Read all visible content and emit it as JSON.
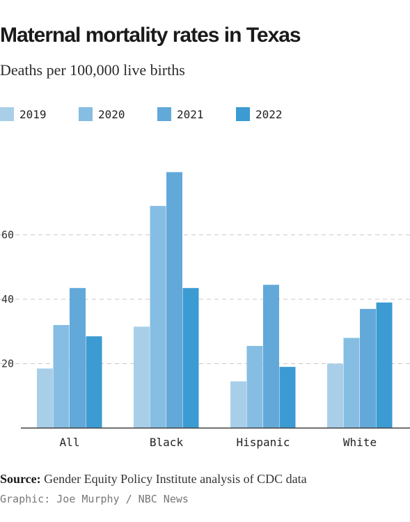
{
  "header": {
    "title": "Maternal mortality rates in Texas",
    "subtitle": "Deaths per 100,000 live births"
  },
  "footer": {
    "source_label": "Source:",
    "source_text": "Gender Equity Policy Institute analysis of CDC data",
    "credit": "Graphic: Joe Murphy / NBC News"
  },
  "colors": {
    "2019": "#a9cfe8",
    "2020": "#86bde3",
    "2021": "#62a9da",
    "2022": "#3c9bd2"
  },
  "chart_data": {
    "type": "bar",
    "categories": [
      "All",
      "Black",
      "Hispanic",
      "White"
    ],
    "series": [
      {
        "name": "2019",
        "values": [
          18.5,
          31.5,
          14.5,
          20
        ]
      },
      {
        "name": "2020",
        "values": [
          32,
          69,
          25.5,
          28
        ]
      },
      {
        "name": "2021",
        "values": [
          43.5,
          79.5,
          44.5,
          37
        ]
      },
      {
        "name": "2022",
        "values": [
          28.5,
          43.5,
          19,
          39
        ]
      }
    ],
    "yticks": [
      20,
      40,
      60
    ],
    "ylim": [
      0,
      80
    ],
    "grid": "horizontal dashed",
    "legend": "top-left"
  }
}
